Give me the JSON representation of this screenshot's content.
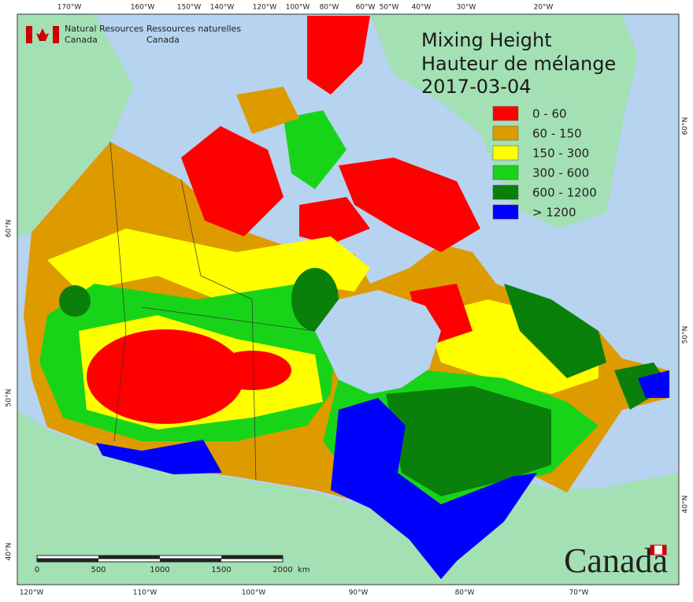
{
  "header": {
    "agency_en": [
      "Natural Resources",
      "Canada"
    ],
    "agency_fr": [
      "Ressources naturelles",
      "Canada"
    ]
  },
  "title": {
    "line1": "Mixing Height",
    "line2": "Hauteur de mélange",
    "date": "2017-03-04"
  },
  "legend": [
    {
      "label": "0 - 60",
      "color": "#ff0000"
    },
    {
      "label": "60 - 150",
      "color": "#dd9b00"
    },
    {
      "label": "150 - 300",
      "color": "#ffff00"
    },
    {
      "label": "300 - 600",
      "color": "#18d418"
    },
    {
      "label": "600 - 1200",
      "color": "#0a800a"
    },
    {
      "label": "> 1200",
      "color": "#0000ff"
    }
  ],
  "graticule": {
    "top": [
      "170°W",
      "160°W",
      "150°W",
      "140°W",
      "120°W",
      "100°W",
      "80°W",
      "60°W",
      "50°W",
      "40°W",
      "30°W",
      "20°W"
    ],
    "bottom": [
      "120°W",
      "110°W",
      "100°W",
      "90°W",
      "80°W",
      "70°W"
    ],
    "left": [
      "60°N",
      "50°N",
      "40°N"
    ],
    "right": [
      "60°N",
      "50°N",
      "40°N"
    ]
  },
  "scale_bar": {
    "labels": [
      "0",
      "500",
      "1000",
      "1500",
      "2000"
    ],
    "unit": "km"
  },
  "wordmark": "Canada"
}
